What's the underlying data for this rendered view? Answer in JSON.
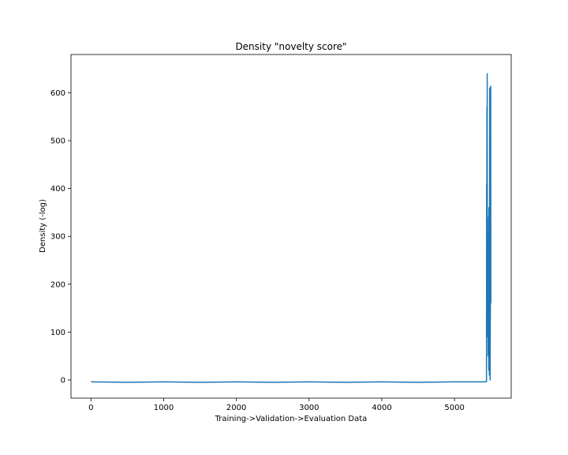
{
  "chart_data": {
    "type": "line",
    "title": "Density \"novelty score\"",
    "xlabel": "Training->Validation->Evaluation Data",
    "ylabel": "Density (-log)",
    "xlim": [
      -275,
      5780
    ],
    "ylim": [
      -38,
      680
    ],
    "x_ticks": [
      0,
      1000,
      2000,
      3000,
      4000,
      5000
    ],
    "y_ticks": [
      0,
      100,
      200,
      300,
      400,
      500,
      600
    ],
    "grid": false,
    "series": [
      {
        "color": "#1f77b4",
        "points": [
          [
            0,
            -4
          ],
          [
            500,
            -5
          ],
          [
            1000,
            -4
          ],
          [
            1500,
            -5
          ],
          [
            2000,
            -4
          ],
          [
            2500,
            -5
          ],
          [
            3000,
            -4
          ],
          [
            3500,
            -5
          ],
          [
            4000,
            -4
          ],
          [
            4500,
            -5
          ],
          [
            5000,
            -4
          ],
          [
            5440,
            -4
          ],
          [
            5442,
            410
          ],
          [
            5444,
            95
          ],
          [
            5446,
            570
          ],
          [
            5448,
            100
          ],
          [
            5450,
            640
          ],
          [
            5452,
            200
          ],
          [
            5454,
            90
          ],
          [
            5456,
            340
          ],
          [
            5458,
            150
          ],
          [
            5460,
            230
          ],
          [
            5462,
            50
          ],
          [
            5464,
            300
          ],
          [
            5466,
            190
          ],
          [
            5468,
            80
          ],
          [
            5470,
            140
          ],
          [
            5472,
            20
          ],
          [
            5474,
            360
          ],
          [
            5476,
            90
          ],
          [
            5478,
            120
          ],
          [
            5480,
            10
          ],
          [
            5482,
            200
          ],
          [
            5484,
            610
          ],
          [
            5486,
            100
          ],
          [
            5488,
            150
          ],
          [
            5490,
            0
          ],
          [
            5492,
            120
          ],
          [
            5494,
            160
          ],
          [
            5496,
            200
          ],
          [
            5498,
            614
          ],
          [
            5500,
            160
          ]
        ]
      }
    ]
  }
}
